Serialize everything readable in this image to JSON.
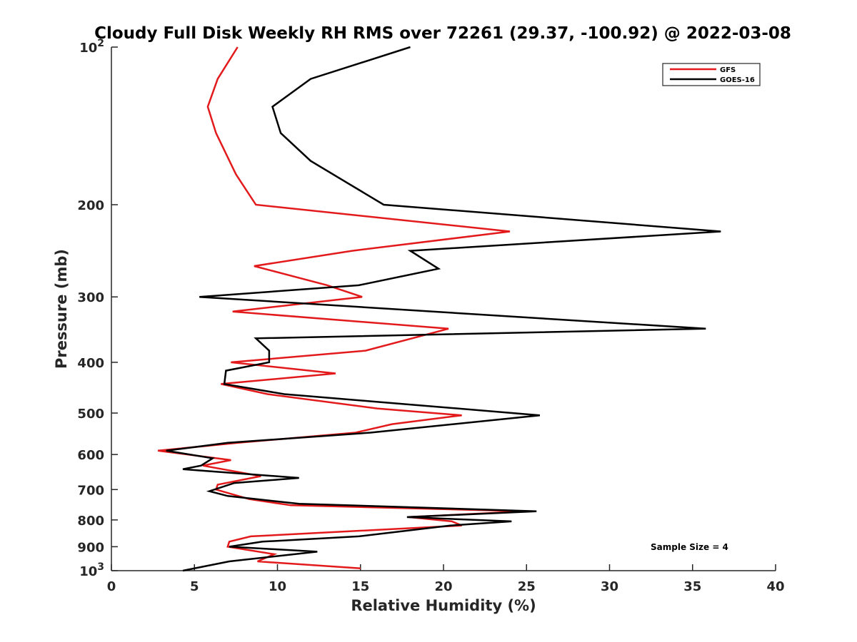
{
  "chart_data": {
    "type": "line",
    "title": "Cloudy Full Disk Weekly RH RMS over 72261 (29.37, -100.92) @ 2022-03-08",
    "xlabel": "Relative Humidity (%)",
    "ylabel": "Pressure (mb)",
    "xlim": [
      0,
      40
    ],
    "ylim": [
      100,
      1000
    ],
    "y_scale": "log",
    "y_reversed": true,
    "grid": false,
    "legend_position": "top-right",
    "x_ticks": [
      "0",
      "5",
      "10",
      "15",
      "20",
      "25",
      "30",
      "35",
      "40"
    ],
    "x_tick_values": [
      0,
      5,
      10,
      15,
      20,
      25,
      30,
      35,
      40
    ],
    "y_ticks": [
      {
        "value": 100,
        "base": "10",
        "exp": "2"
      },
      {
        "value": 200,
        "label": "200"
      },
      {
        "value": 300,
        "label": "300"
      },
      {
        "value": 400,
        "label": "400"
      },
      {
        "value": 500,
        "label": "500"
      },
      {
        "value": 600,
        "label": "600"
      },
      {
        "value": 700,
        "label": "700"
      },
      {
        "value": 800,
        "label": "800"
      },
      {
        "value": 900,
        "label": "900"
      },
      {
        "value": 1000,
        "base": "10",
        "exp": "3"
      }
    ],
    "series": [
      {
        "name": "GFS",
        "color": "#e31a1c",
        "x": [
          7.6,
          6.4,
          5.8,
          6.3,
          7.5,
          8.7,
          24.0,
          14.5,
          8.6,
          13.0,
          15.1,
          7.3,
          20.3,
          15.3,
          7.2,
          13.5,
          6.6,
          9.4,
          16.0,
          21.1,
          16.9,
          14.7,
          7.6,
          2.8,
          7.2,
          5.5,
          9.0,
          6.4,
          6.3,
          8.3,
          10.8,
          25.0,
          17.9,
          20.5,
          21.1,
          8.4,
          7.1,
          7.0,
          9.8,
          8.8,
          15.0
        ],
        "y": [
          100,
          115,
          130,
          146,
          175,
          200,
          225,
          245,
          262,
          285,
          300,
          320,
          345,
          380,
          400,
          420,
          440,
          460,
          490,
          505,
          525,
          545,
          570,
          590,
          615,
          630,
          660,
          685,
          700,
          730,
          750,
          770,
          790,
          805,
          820,
          860,
          880,
          900,
          930,
          960,
          990
        ]
      },
      {
        "name": "GOES-16",
        "color": "#000000",
        "x": [
          18.0,
          12.0,
          9.7,
          10.2,
          12.0,
          16.4,
          36.7,
          18.0,
          19.7,
          14.9,
          5.3,
          35.8,
          8.7,
          9.5,
          9.5,
          6.9,
          6.8,
          10.4,
          15.7,
          25.8,
          15.6,
          7.0,
          3.3,
          6.1,
          5.4,
          4.3,
          11.3,
          7.4,
          5.9,
          7.0,
          11.3,
          25.6,
          17.8,
          24.1,
          20.4,
          14.9,
          9.1,
          7.1,
          12.4,
          7.1,
          4.3
        ],
        "y": [
          100,
          115,
          130,
          146,
          165,
          200,
          225,
          245,
          265,
          285,
          300,
          345,
          360,
          380,
          400,
          415,
          440,
          460,
          475,
          505,
          545,
          570,
          590,
          610,
          630,
          640,
          665,
          680,
          705,
          720,
          745,
          770,
          790,
          805,
          820,
          860,
          880,
          900,
          920,
          960,
          1000
        ]
      }
    ],
    "annotation": "Sample Size = 4"
  }
}
